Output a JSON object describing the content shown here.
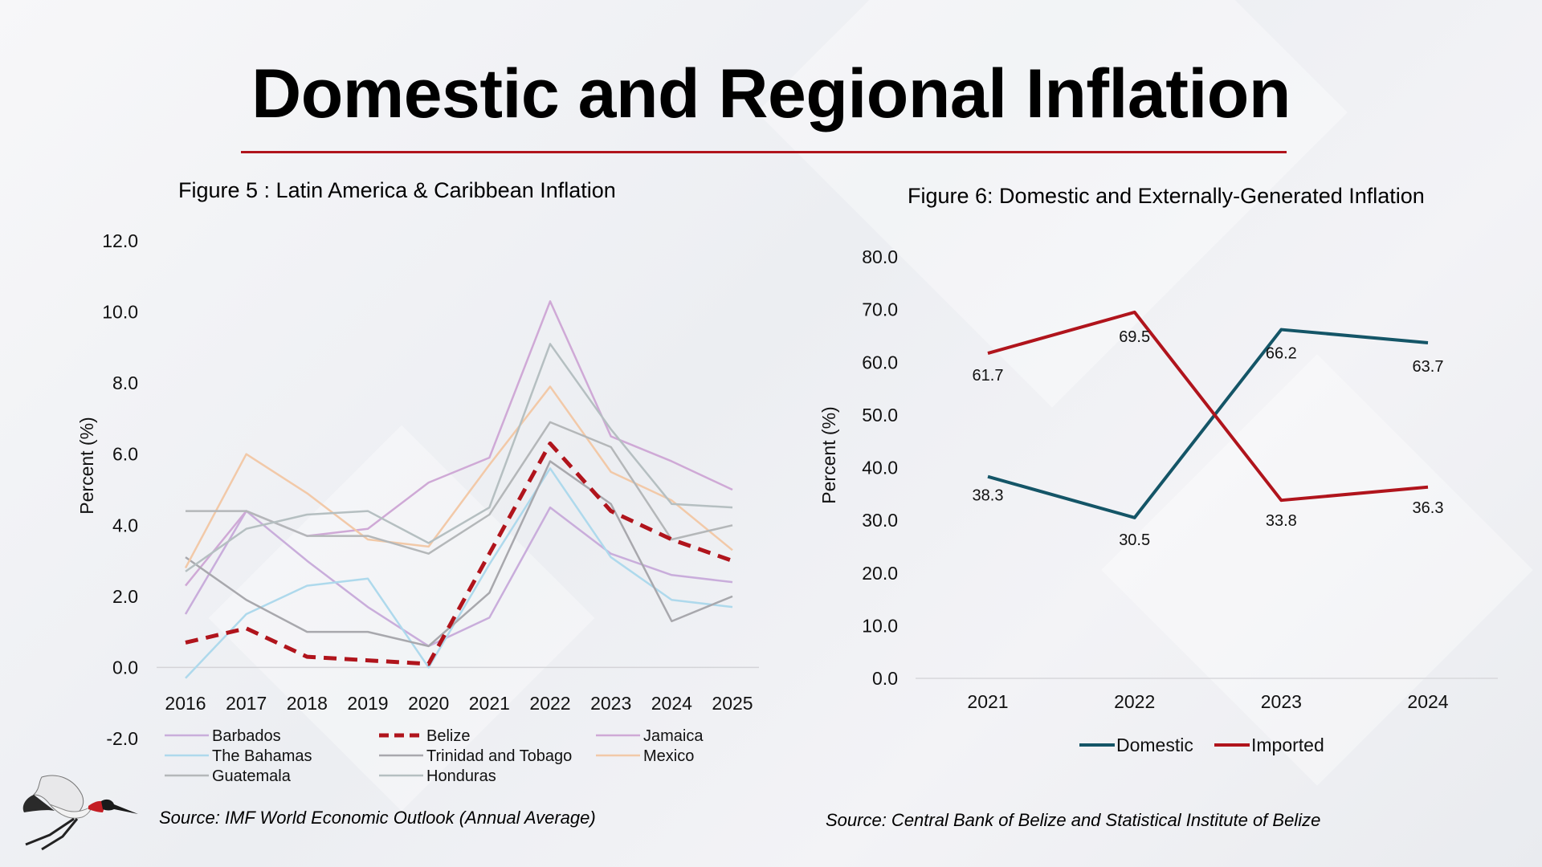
{
  "page": {
    "title": "Domestic and Regional Inflation",
    "accent_color": "#b0141c"
  },
  "figure5": {
    "title": "Figure 5 : Latin America & Caribbean Inflation",
    "source": "Source: IMF World Economic Outlook  (Annual Average)"
  },
  "figure6": {
    "title": "Figure 6: Domestic and Externally-Generated Inflation",
    "source": "Source: Central Bank of Belize and Statistical Institute of Belize"
  },
  "logo": {
    "icon": "jabiru-stork-icon"
  },
  "chart_data": [
    {
      "type": "line",
      "title": "Figure 5 : Latin America & Caribbean Inflation",
      "ylabel": "Percent (%)",
      "xlabel": "",
      "x": [
        "2016",
        "2017",
        "2018",
        "2019",
        "2020",
        "2021",
        "2022",
        "2023",
        "2024",
        "2025"
      ],
      "ylim": [
        -2.0,
        12.0
      ],
      "yticks": [
        "-2.0",
        "0.0",
        "2.0",
        "4.0",
        "6.0",
        "8.0",
        "10.0",
        "12.0"
      ],
      "grid": false,
      "legend": "bottom",
      "series": [
        {
          "name": "Barbados",
          "color": "#c9addb",
          "dash": false,
          "values": [
            1.5,
            4.4,
            3.0,
            1.7,
            0.6,
            1.4,
            4.5,
            3.2,
            2.6,
            2.4
          ]
        },
        {
          "name": "Belize",
          "color": "#b0141c",
          "dash": true,
          "values": [
            0.7,
            1.1,
            0.3,
            0.2,
            0.1,
            3.2,
            6.3,
            4.4,
            3.6,
            3.0
          ]
        },
        {
          "name": "Jamaica",
          "color": "#cfa9d6",
          "dash": false,
          "values": [
            2.3,
            4.4,
            3.7,
            3.9,
            5.2,
            5.9,
            10.3,
            6.5,
            5.8,
            5.0
          ]
        },
        {
          "name": "The Bahamas",
          "color": "#aed9ec",
          "dash": false,
          "values": [
            -0.3,
            1.5,
            2.3,
            2.5,
            0.0,
            2.9,
            5.6,
            3.1,
            1.9,
            1.7
          ]
        },
        {
          "name": "Trinidad and Tobago",
          "color": "#a8a8ad",
          "dash": false,
          "values": [
            3.1,
            1.9,
            1.0,
            1.0,
            0.6,
            2.1,
            5.8,
            4.6,
            1.3,
            2.0
          ]
        },
        {
          "name": "Mexico",
          "color": "#f2c9a8",
          "dash": false,
          "values": [
            2.8,
            6.0,
            4.9,
            3.6,
            3.4,
            5.7,
            7.9,
            5.5,
            4.7,
            3.3
          ]
        },
        {
          "name": "Guatemala",
          "color": "#b4b7b9",
          "dash": false,
          "values": [
            4.4,
            4.4,
            3.7,
            3.7,
            3.2,
            4.3,
            6.9,
            6.2,
            3.6,
            4.0
          ]
        },
        {
          "name": "Honduras",
          "color": "#b5bfc1",
          "dash": false,
          "values": [
            2.7,
            3.9,
            4.3,
            4.4,
            3.5,
            4.5,
            9.1,
            6.7,
            4.6,
            4.5
          ]
        }
      ]
    },
    {
      "type": "line",
      "title": "Figure 6: Domestic and Externally-Generated Inflation",
      "ylabel": "Percent (%)",
      "xlabel": "",
      "x": [
        "2021",
        "2022",
        "2023",
        "2024"
      ],
      "ylim": [
        0.0,
        80.0
      ],
      "yticks": [
        "0.0",
        "10.0",
        "20.0",
        "30.0",
        "40.0",
        "50.0",
        "60.0",
        "70.0",
        "80.0"
      ],
      "grid": false,
      "legend": "bottom",
      "series": [
        {
          "name": "Domestic",
          "color": "#145567",
          "values": [
            38.3,
            30.5,
            66.2,
            63.7
          ],
          "labels": [
            "38.3",
            "30.5",
            "66.2",
            "63.7"
          ]
        },
        {
          "name": "Imported",
          "color": "#b0141c",
          "values": [
            61.7,
            69.5,
            33.8,
            36.3
          ],
          "labels": [
            "61.7",
            "69.5",
            "33.8",
            "36.3"
          ]
        }
      ]
    }
  ]
}
